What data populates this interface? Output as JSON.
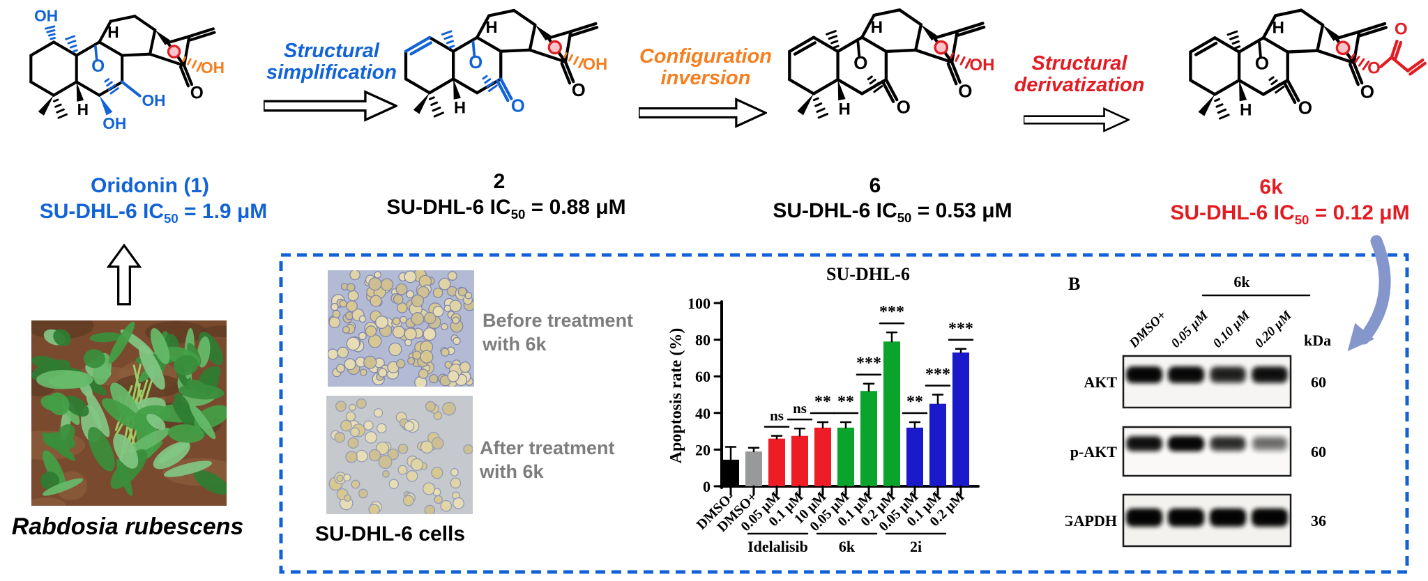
{
  "top_row": {
    "compounds": [
      {
        "name": "Oridonin (1)",
        "name_color": "#1263d6",
        "ic": {
          "prefix": "SU-DHL-6  IC",
          "sub": "50",
          "rest": " = 1.9 μM"
        },
        "ic_color": "#1263d6",
        "structure": {
          "variant": "oridonin",
          "highlight": "#1263d6",
          "oh_main_color": "#f57e1f",
          "ring_o_color": "#1263d6",
          "top_methyl_color": "#1263d6",
          "dot_color": "#e11d23"
        }
      },
      {
        "name": "2",
        "name_color": "#000000",
        "ic": {
          "prefix": "SU-DHL-6  IC",
          "sub": "50",
          "rest": " = 0.88 μM"
        },
        "ic_color": "#000000",
        "structure": {
          "variant": "keto",
          "double_bond": "#1263d6",
          "ring_o_color": "#1263d6",
          "bottom_ketone_color": "#1263d6",
          "top_methyl_color": "#1263d6",
          "oh_main_color": "#f57e1f",
          "dot_color": "#e11d23"
        }
      },
      {
        "name": "6",
        "name_color": "#000000",
        "ic": {
          "prefix": "SU-DHL-6  IC",
          "sub": "50",
          "rest": " = 0.53 μM"
        },
        "ic_color": "#000000",
        "structure": {
          "variant": "keto",
          "double_bond": "#000000",
          "ring_o_color": "#000000",
          "bottom_ketone_color": "#000000",
          "top_methyl_color": "#000000",
          "oh_main_color": "#e11d23",
          "dot_color": "#e11d23"
        }
      },
      {
        "name": "6k",
        "name_color": "#e11d23",
        "ic": {
          "prefix": "SU-DHL-6  IC",
          "sub": "50",
          "rest": " = 0.12 μM"
        },
        "ic_color": "#e11d23",
        "structure": {
          "variant": "keto",
          "double_bond": "#000000",
          "ring_o_color": "#000000",
          "bottom_ketone_color": "#000000",
          "top_methyl_color": "#000000",
          "acrylate_color": "#e11d23",
          "dot_color": "#e11d23"
        }
      }
    ],
    "arrows": [
      {
        "lines": [
          "Structural",
          "simplification"
        ],
        "color": "#1263d6"
      },
      {
        "lines": [
          "Configuration",
          "inversion"
        ],
        "color": "#f57e1f"
      },
      {
        "lines": [
          "Structural",
          "derivatization"
        ],
        "color": "#e11d23"
      }
    ],
    "atom_labels": {
      "o": "O",
      "oh": "OH",
      "h": "H"
    }
  },
  "source_plant": {
    "caption": "Rabdosia rubescens"
  },
  "cells_panel": {
    "before_lines": [
      "Before treatment",
      "with 6k"
    ],
    "after_lines": [
      "After treatment",
      "with 6k"
    ],
    "caption": "SU-DHL-6 cells",
    "label_color": "#7d7d7d"
  },
  "chart_data": {
    "type": "bar",
    "title": "SU-DHL-6",
    "ylabel": "Apoptosis rate (%)",
    "ylim": [
      0,
      100
    ],
    "yticks": [
      0,
      20,
      40,
      60,
      80,
      100
    ],
    "categories": [
      "DMSO-",
      "DMSO+",
      "0.05 μM",
      "0.1 μM",
      "10 μM",
      "0.05 μM",
      "0.1 μM",
      "0.2 μM",
      "0.05 μM",
      "0.1 μM",
      "0.2 μM"
    ],
    "values": [
      14.5,
      19,
      26,
      27.5,
      32,
      32,
      52,
      79,
      32,
      45,
      73
    ],
    "errors": [
      7,
      2,
      1.5,
      4,
      3,
      3,
      4,
      5,
      3,
      5,
      2
    ],
    "bar_colors": [
      "#000000",
      "#97999b",
      "#ee1c25",
      "#ee1c25",
      "#ee1c25",
      "#0aa32b",
      "#0aa32b",
      "#0aa32b",
      "#1a1acb",
      "#1a1acb",
      "#1a1acb"
    ],
    "significance": [
      "",
      "",
      "ns",
      "ns",
      "**",
      "**",
      "***",
      "***",
      "**",
      "***",
      "***"
    ],
    "groups": [
      {
        "label": "Idelalisib",
        "from": 2,
        "to": 4
      },
      {
        "label": "6k",
        "from": 5,
        "to": 7
      },
      {
        "label": "2i",
        "from": 8,
        "to": 10
      }
    ],
    "grid": false,
    "legend": "none"
  },
  "blot": {
    "panel_label": "B",
    "group_label": "6k",
    "lanes": [
      "DMSO+",
      "0.05 μM",
      "0.10 μM",
      "0.20 μM"
    ],
    "kda_label": "kDa",
    "rows": [
      {
        "name": "AKT",
        "kda": "60",
        "intensities": [
          0.95,
          0.92,
          0.72,
          0.85
        ]
      },
      {
        "name": "p-AKT",
        "kda": "60",
        "intensities": [
          0.85,
          0.95,
          0.65,
          0.38
        ]
      },
      {
        "name": "GAPDH",
        "kda": "36",
        "intensities": [
          0.97,
          0.97,
          0.97,
          0.97
        ]
      }
    ]
  },
  "box_color": "#1161d8",
  "curved_arrow_color": "#8496cb"
}
